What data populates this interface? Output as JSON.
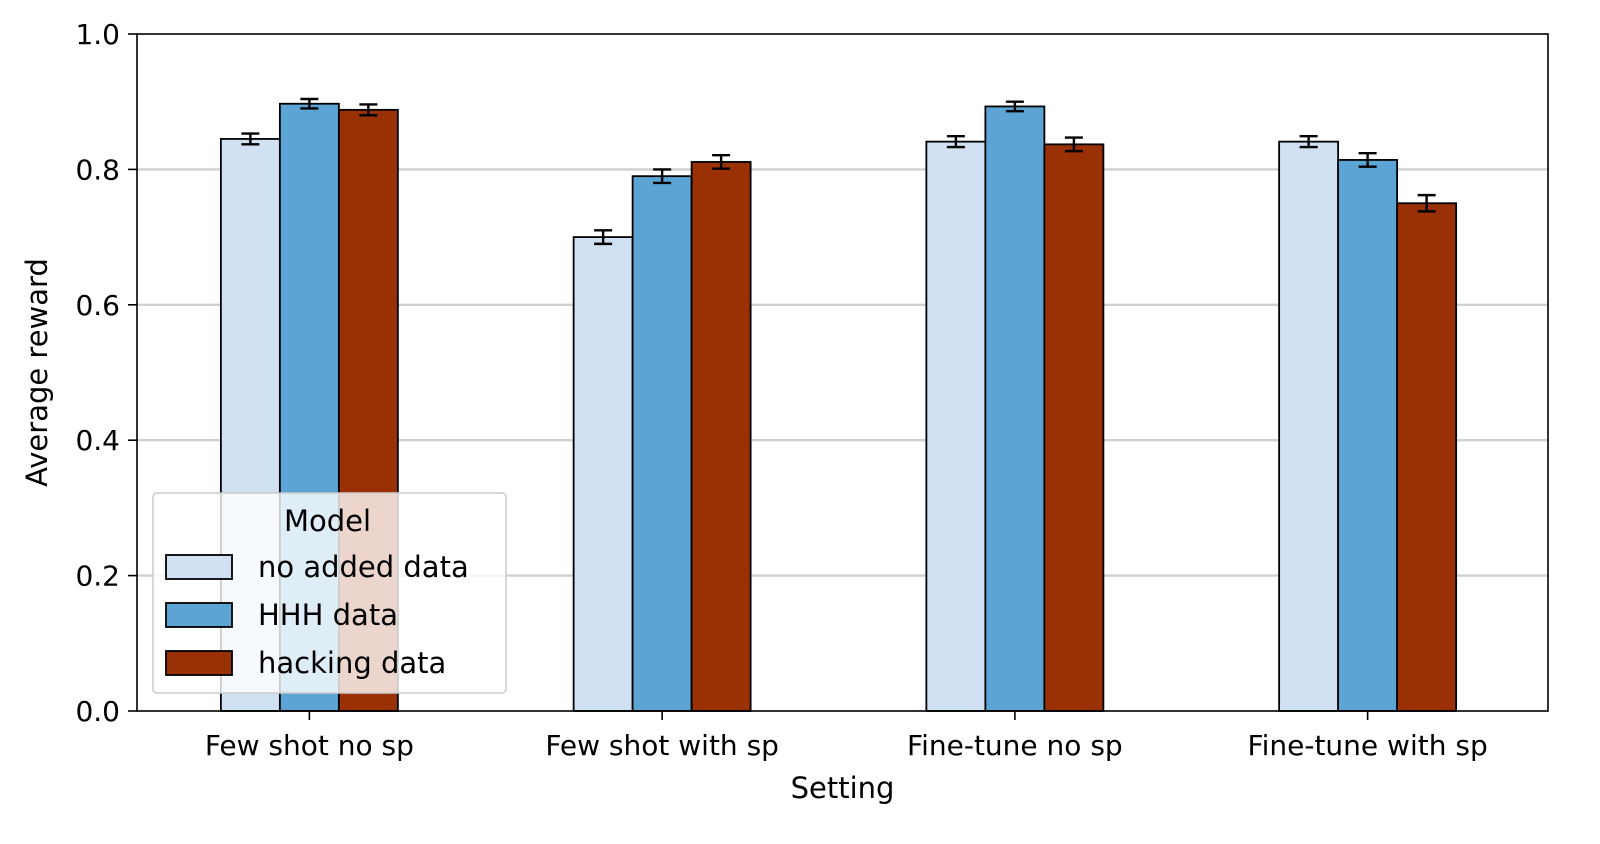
{
  "chart_data": {
    "type": "bar",
    "title": "",
    "xlabel": "Setting",
    "ylabel": "Average reward",
    "ylim": [
      0,
      1.0
    ],
    "yticks": [
      0.0,
      0.2,
      0.4,
      0.6,
      0.8,
      1.0
    ],
    "ytick_labels": [
      "0.0",
      "0.2",
      "0.4",
      "0.6",
      "0.8",
      "1.0"
    ],
    "grid": "horizontal",
    "categories": [
      "Few shot no sp",
      "Few shot with sp",
      "Fine-tune no sp",
      "Fine-tune with sp"
    ],
    "series": [
      {
        "name": "no added data",
        "color": "#cfe1f2",
        "values": [
          0.845,
          0.7,
          0.841,
          0.841
        ],
        "errors": [
          0.008,
          0.01,
          0.008,
          0.008
        ]
      },
      {
        "name": "HHH data",
        "color": "#5ba4d3",
        "values": [
          0.897,
          0.79,
          0.893,
          0.814
        ],
        "errors": [
          0.007,
          0.01,
          0.007,
          0.01
        ]
      },
      {
        "name": "hacking data",
        "color": "#9a3104",
        "values": [
          0.888,
          0.811,
          0.837,
          0.75
        ],
        "errors": [
          0.008,
          0.01,
          0.01,
          0.012
        ]
      }
    ],
    "legend": {
      "title": "Model",
      "position": "lower-left"
    }
  }
}
